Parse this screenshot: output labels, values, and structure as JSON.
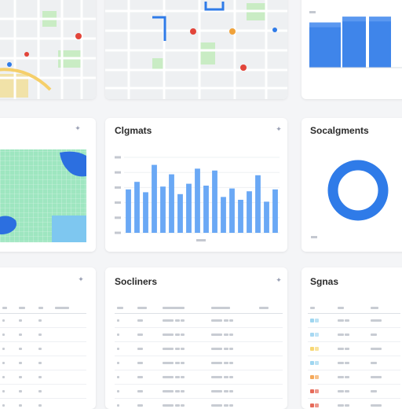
{
  "cards": {
    "center_chart": {
      "title": "Clgmats"
    },
    "right_donut": {
      "title": "Socalgments"
    },
    "mid_table": {
      "title": "Socliners"
    },
    "right_table": {
      "title": "Sgnas"
    }
  },
  "colors": {
    "accent": "#2f7be8",
    "bar": "#6aa8f5",
    "donut": "#2f7be8",
    "map_green": "#9ee6c0",
    "map_water": "#2c6fe0"
  },
  "chart_data": [
    {
      "type": "bar",
      "title": "Clgmats",
      "values": [
        46,
        54,
        43,
        72,
        49,
        62,
        41,
        52,
        68,
        50,
        66,
        38,
        47,
        35,
        44,
        61,
        33,
        46
      ],
      "ylim": [
        0,
        80
      ],
      "ytick_count": 6
    },
    {
      "type": "bar",
      "title": "",
      "values": [
        62,
        70,
        70
      ],
      "ylim": [
        0,
        80
      ]
    },
    {
      "type": "pie",
      "title": "Socalgments",
      "values": [
        100
      ]
    }
  ],
  "mid_table": {
    "rows": 7
  },
  "right_table": {
    "swatches": [
      "#9fd6f0",
      "#a7d8f2",
      "#f7d774",
      "#9fd6f0",
      "#f4a85a",
      "#e66b5a",
      "#e66b5a"
    ]
  }
}
